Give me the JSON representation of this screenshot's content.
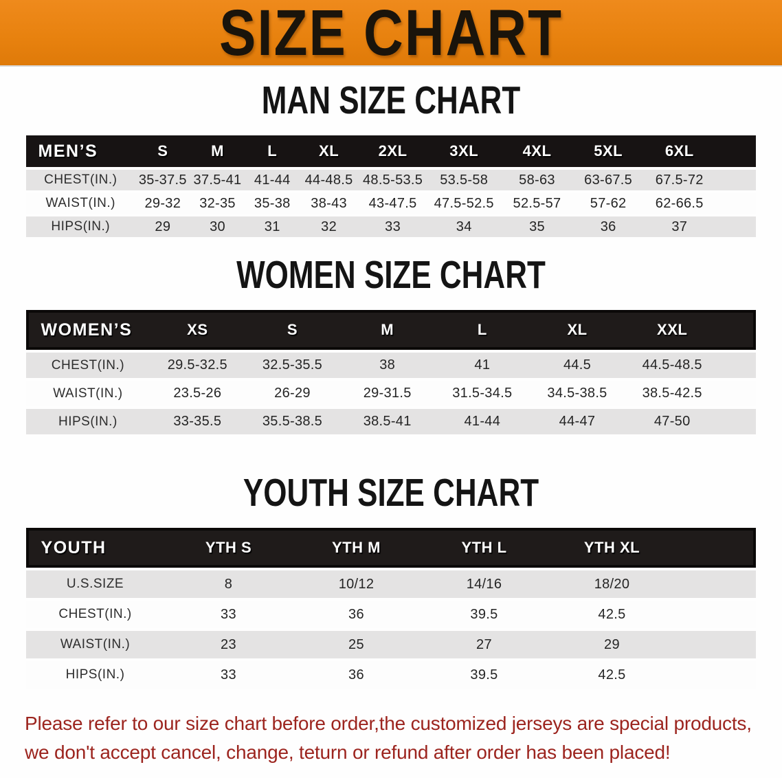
{
  "banner": {
    "title": "SIZE CHART",
    "bg_color": "#E8820F",
    "text_color": "#1A140B"
  },
  "sections": [
    {
      "id": "men",
      "title": "MAN SIZE CHART",
      "table": {
        "header_label": "MEN’S",
        "columns": [
          "S",
          "M",
          "L",
          "XL",
          "2XL",
          "3XL",
          "4XL",
          "5XL",
          "6XL"
        ],
        "rows": [
          {
            "label": "CHEST(IN.)",
            "values": [
              "35-37.5",
              "37.5-41",
              "41-44",
              "44-48.5",
              "48.5-53.5",
              "53.5-58",
              "58-63",
              "63-67.5",
              "67.5-72"
            ]
          },
          {
            "label": "WAIST(IN.)",
            "values": [
              "29-32",
              "32-35",
              "35-38",
              "38-43",
              "43-47.5",
              "47.5-52.5",
              "52.5-57",
              "57-62",
              "62-66.5"
            ]
          },
          {
            "label": "HIPS(IN.)",
            "values": [
              "29",
              "30",
              "31",
              "32",
              "33",
              "34",
              "35",
              "36",
              "37"
            ]
          }
        ]
      }
    },
    {
      "id": "women",
      "title": "WOMEN SIZE CHART",
      "table": {
        "header_label": "WOMEN’S",
        "columns": [
          "XS",
          "S",
          "M",
          "L",
          "XL",
          "XXL"
        ],
        "rows": [
          {
            "label": "CHEST(IN.)",
            "values": [
              "29.5-32.5",
              "32.5-35.5",
              "38",
              "41",
              "44.5",
              "44.5-48.5"
            ]
          },
          {
            "label": "WAIST(IN.)",
            "values": [
              "23.5-26",
              "26-29",
              "29-31.5",
              "31.5-34.5",
              "34.5-38.5",
              "38.5-42.5"
            ]
          },
          {
            "label": "HIPS(IN.)",
            "values": [
              "33-35.5",
              "35.5-38.5",
              "38.5-41",
              "41-44",
              "44-47",
              "47-50"
            ]
          }
        ]
      }
    },
    {
      "id": "youth",
      "title": "YOUTH SIZE CHART",
      "table": {
        "header_label": "YOUTH",
        "columns": [
          "YTH S",
          "YTH M",
          "YTH L",
          "YTH XL"
        ],
        "rows": [
          {
            "label": "U.S.SIZE",
            "values": [
              "8",
              "10/12",
              "14/16",
              "18/20"
            ]
          },
          {
            "label": "CHEST(IN.)",
            "values": [
              "33",
              "36",
              "39.5",
              "42.5"
            ]
          },
          {
            "label": "WAIST(IN.)",
            "values": [
              "23",
              "25",
              "27",
              "29"
            ]
          },
          {
            "label": "HIPS(IN.)",
            "values": [
              "33",
              "36",
              "39.5",
              "42.5"
            ]
          }
        ]
      }
    }
  ],
  "disclaimer": {
    "line1": "Please refer to our size chart before order,the customized jerseys are special products,",
    "line2": "we don't accept cancel, change, teturn or refund after order has been placed!",
    "color": "#9C241E"
  }
}
